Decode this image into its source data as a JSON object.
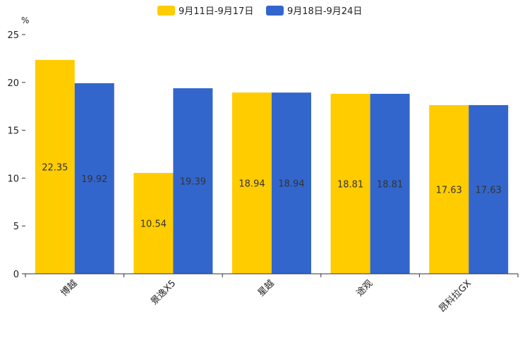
{
  "chart_data": {
    "type": "bar",
    "title": "",
    "xlabel": "",
    "ylabel": "%",
    "ylim": [
      0,
      25
    ],
    "yticks": [
      0,
      5,
      10,
      15,
      20,
      25
    ],
    "grid": false,
    "legend_position": "top-center",
    "categories": [
      "博越",
      "景逸X5",
      "星越",
      "途观",
      "昂科拉GX"
    ],
    "series": [
      {
        "name": "9月11日-9月17日",
        "color": "#FFCC00",
        "values": [
          22.35,
          10.54,
          18.94,
          18.81,
          17.63
        ]
      },
      {
        "name": "9月18日-9月24日",
        "color": "#3366CC",
        "values": [
          19.92,
          19.39,
          18.94,
          18.81,
          17.63
        ]
      }
    ]
  }
}
